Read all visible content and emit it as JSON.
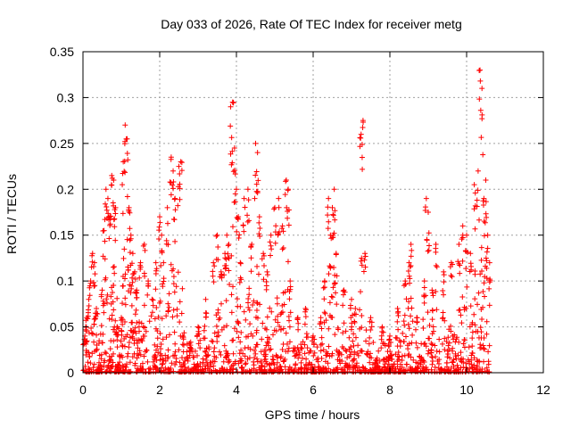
{
  "chart_data": {
    "type": "scatter",
    "title": "Day 033 of 2026, Rate Of TEC Index for receiver metg",
    "xlabel": "GPS time / hours",
    "ylabel": "ROTI / TECUs",
    "xlim": [
      0,
      12
    ],
    "ylim": [
      0,
      0.35
    ],
    "x_ticks": [
      0,
      2,
      4,
      6,
      8,
      10,
      12
    ],
    "y_ticks": [
      0,
      0.05,
      0.1,
      0.15,
      0.2,
      0.25,
      0.3,
      0.35
    ],
    "x_tick_labels": [
      "0",
      "2",
      "4",
      "6",
      "8",
      "10",
      "12"
    ],
    "y_tick_labels": [
      "0",
      "0.05",
      "0.1",
      "0.15",
      "0.2",
      "0.25",
      "0.3",
      "0.35"
    ],
    "grid": true,
    "marker": "+",
    "color": "#ff0000",
    "data_range_hours": [
      0,
      10.6
    ],
    "series": [
      {
        "name": "ROTI",
        "points": [
          [
            0.05,
            0.04
          ],
          [
            0.1,
            0.06
          ],
          [
            0.15,
            0.08
          ],
          [
            0.2,
            0.1
          ],
          [
            0.25,
            0.13
          ],
          [
            0.3,
            0.12
          ],
          [
            0.35,
            0.07
          ],
          [
            0.5,
            0.09
          ],
          [
            0.55,
            0.155
          ],
          [
            0.6,
            0.2
          ],
          [
            0.65,
            0.19
          ],
          [
            0.7,
            0.17
          ],
          [
            0.75,
            0.215
          ],
          [
            0.8,
            0.21
          ],
          [
            0.85,
            0.18
          ],
          [
            0.9,
            0.05
          ],
          [
            1.0,
            0.06
          ],
          [
            1.05,
            0.23
          ],
          [
            1.1,
            0.27
          ],
          [
            1.15,
            0.255
          ],
          [
            1.2,
            0.18
          ],
          [
            1.25,
            0.15
          ],
          [
            1.3,
            0.13
          ],
          [
            1.35,
            0.11
          ],
          [
            1.4,
            0.09
          ],
          [
            1.5,
            0.12
          ],
          [
            1.6,
            0.14
          ],
          [
            1.7,
            0.1
          ],
          [
            1.8,
            0.08
          ],
          [
            1.9,
            0.12
          ],
          [
            2.0,
            0.17
          ],
          [
            2.05,
            0.15
          ],
          [
            2.1,
            0.12
          ],
          [
            2.2,
            0.18
          ],
          [
            2.3,
            0.235
          ],
          [
            2.35,
            0.22
          ],
          [
            2.4,
            0.19
          ],
          [
            2.5,
            0.225
          ],
          [
            2.55,
            0.23
          ],
          [
            2.6,
            0.04
          ],
          [
            2.8,
            0.03
          ],
          [
            3.0,
            0.05
          ],
          [
            3.2,
            0.08
          ],
          [
            3.4,
            0.12
          ],
          [
            3.5,
            0.15
          ],
          [
            3.6,
            0.11
          ],
          [
            3.7,
            0.13
          ],
          [
            3.75,
            0.15
          ],
          [
            3.8,
            0.14
          ],
          [
            3.85,
            0.29
          ],
          [
            3.9,
            0.295
          ],
          [
            3.95,
            0.245
          ],
          [
            4.0,
            0.2
          ],
          [
            4.05,
            0.17
          ],
          [
            4.1,
            0.12
          ],
          [
            4.2,
            0.19
          ],
          [
            4.3,
            0.2
          ],
          [
            4.4,
            0.14
          ],
          [
            4.5,
            0.25
          ],
          [
            4.55,
            0.24
          ],
          [
            4.6,
            0.17
          ],
          [
            4.7,
            0.13
          ],
          [
            4.8,
            0.11
          ],
          [
            4.9,
            0.15
          ],
          [
            5.0,
            0.18
          ],
          [
            5.1,
            0.19
          ],
          [
            5.2,
            0.16
          ],
          [
            5.3,
            0.21
          ],
          [
            5.35,
            0.2
          ],
          [
            5.4,
            0.1
          ],
          [
            5.6,
            0.06
          ],
          [
            5.8,
            0.07
          ],
          [
            6.0,
            0.04
          ],
          [
            6.2,
            0.06
          ],
          [
            6.3,
            0.1
          ],
          [
            6.4,
            0.19
          ],
          [
            6.45,
            0.15
          ],
          [
            6.5,
            0.18
          ],
          [
            6.55,
            0.2
          ],
          [
            6.6,
            0.13
          ],
          [
            6.8,
            0.09
          ],
          [
            7.0,
            0.08
          ],
          [
            7.1,
            0.07
          ],
          [
            7.25,
            0.26
          ],
          [
            7.3,
            0.275
          ],
          [
            7.35,
            0.13
          ],
          [
            7.5,
            0.06
          ],
          [
            7.8,
            0.05
          ],
          [
            8.0,
            0.04
          ],
          [
            8.2,
            0.07
          ],
          [
            8.4,
            0.1
          ],
          [
            8.5,
            0.12
          ],
          [
            8.55,
            0.14
          ],
          [
            8.7,
            0.06
          ],
          [
            8.9,
            0.1
          ],
          [
            8.95,
            0.19
          ],
          [
            9.0,
            0.175
          ],
          [
            9.1,
            0.09
          ],
          [
            9.2,
            0.14
          ],
          [
            9.4,
            0.11
          ],
          [
            9.6,
            0.12
          ],
          [
            9.8,
            0.14
          ],
          [
            9.9,
            0.16
          ],
          [
            10.0,
            0.15
          ],
          [
            10.1,
            0.13
          ],
          [
            10.2,
            0.205
          ],
          [
            10.3,
            0.22
          ],
          [
            10.35,
            0.33
          ],
          [
            10.4,
            0.31
          ],
          [
            10.45,
            0.19
          ],
          [
            10.5,
            0.21
          ],
          [
            10.55,
            0.15
          ],
          [
            10.6,
            0.12
          ]
        ]
      }
    ]
  }
}
